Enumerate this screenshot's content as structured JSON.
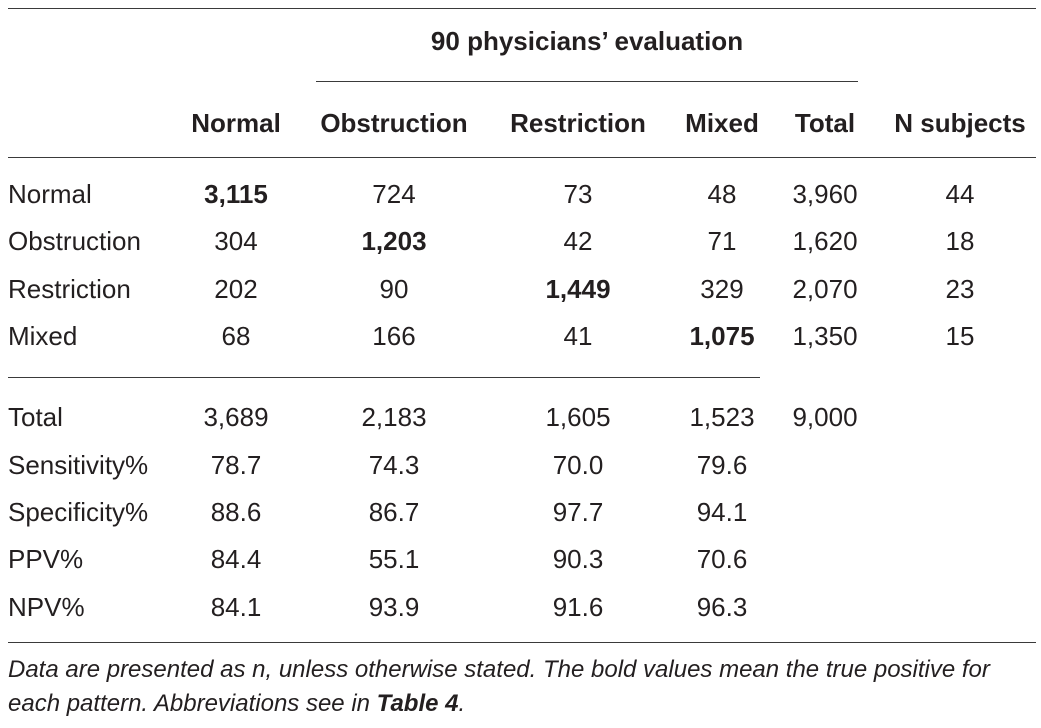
{
  "group_header": "90 physicians’ evaluation",
  "columns": [
    "Normal",
    "Obstruction",
    "Restriction",
    "Mixed",
    "Total",
    "N subjects"
  ],
  "confusion_rows": [
    {
      "label": "Normal",
      "values": [
        "3,115",
        "724",
        "73",
        "48",
        "3,960",
        "44"
      ]
    },
    {
      "label": "Obstruction",
      "values": [
        "304",
        "1,203",
        "42",
        "71",
        "1,620",
        "18"
      ]
    },
    {
      "label": "Restriction",
      "values": [
        "202",
        "90",
        "1,449",
        "329",
        "2,070",
        "23"
      ]
    },
    {
      "label": "Mixed",
      "values": [
        "68",
        "166",
        "41",
        "1,075",
        "1,350",
        "15"
      ]
    }
  ],
  "summary_rows": [
    {
      "label": "Total",
      "values": [
        "3,689",
        "2,183",
        "1,605",
        "1,523",
        "9,000"
      ]
    },
    {
      "label": "Sensitivity%",
      "values": [
        "78.7",
        "74.3",
        "70.0",
        "79.6"
      ]
    },
    {
      "label": "Specificity%",
      "values": [
        "88.6",
        "86.7",
        "97.7",
        "94.1"
      ]
    },
    {
      "label": "PPV%",
      "values": [
        "84.4",
        "55.1",
        "90.3",
        "70.6"
      ]
    },
    {
      "label": "NPV%",
      "values": [
        "84.1",
        "93.9",
        "91.6",
        "96.3"
      ]
    }
  ],
  "footnote": {
    "text": "Data are presented as n, unless otherwise stated. The bold values mean the true positive for each pattern. Abbreviations see in ",
    "ref": "Table 4",
    "end": "."
  }
}
